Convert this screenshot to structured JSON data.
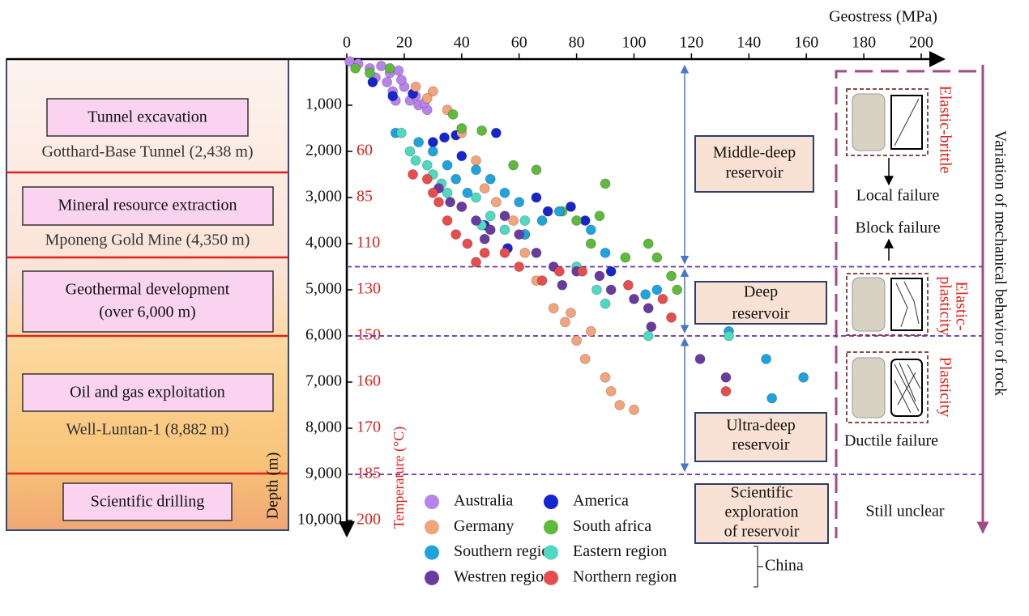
{
  "chart_data": {
    "type": "scatter",
    "x_label": "Geostress (MPa)",
    "y_label": "Depth (m)",
    "xlim": [
      0,
      200
    ],
    "xticks": [
      0,
      20,
      40,
      60,
      80,
      100,
      120,
      140,
      160,
      180,
      200
    ],
    "ylim": [
      0,
      10000
    ],
    "yticks": [
      {
        "value": 1000,
        "label": "1,000"
      },
      {
        "value": 2000,
        "label": "2,000"
      },
      {
        "value": 3000,
        "label": "3,000"
      },
      {
        "value": 4000,
        "label": "4,000"
      },
      {
        "value": 5000,
        "label": "5,000"
      },
      {
        "value": 6000,
        "label": "6,000"
      },
      {
        "value": 7000,
        "label": "7,000"
      },
      {
        "value": 8000,
        "label": "8,000"
      },
      {
        "value": 9000,
        "label": "9,000"
      },
      {
        "value": 10000,
        "label": "10,000"
      }
    ],
    "temperature_axis": {
      "label": "Temperature (°C)",
      "ticks": [
        {
          "depth": 2000,
          "temp": 60
        },
        {
          "depth": 3000,
          "temp": 85
        },
        {
          "depth": 4000,
          "temp": 110
        },
        {
          "depth": 5000,
          "temp": 130
        },
        {
          "depth": 6000,
          "temp": 150
        },
        {
          "depth": 7000,
          "temp": 160
        },
        {
          "depth": 8000,
          "temp": 170
        },
        {
          "depth": 9000,
          "temp": 185
        },
        {
          "depth": 10000,
          "temp": 200
        }
      ]
    },
    "legend_group": "China",
    "series": [
      {
        "name": "Australia",
        "color": "#b784ec",
        "x": [
          1,
          4,
          8,
          12,
          15,
          18,
          14,
          20,
          22,
          25,
          28,
          17,
          10,
          24,
          27,
          19,
          16
        ],
        "y": [
          50,
          100,
          200,
          150,
          300,
          250,
          500,
          600,
          900,
          1000,
          1100,
          900,
          400,
          800,
          950,
          450,
          700
        ]
      },
      {
        "name": "America",
        "color": "#1526cf",
        "x": [
          9,
          16,
          23,
          30,
          34,
          38,
          40,
          52,
          66,
          70,
          78,
          83,
          92,
          62,
          56,
          48
        ],
        "y": [
          500,
          800,
          750,
          1800,
          1700,
          1650,
          2100,
          1600,
          3000,
          3300,
          3200,
          3500,
          4600,
          3800,
          4100,
          3600
        ]
      },
      {
        "name": "Germany",
        "color": "#f2a57c",
        "x": [
          24,
          30,
          35,
          40,
          45,
          48,
          52,
          58,
          62,
          66,
          72,
          76,
          80,
          83,
          90,
          92,
          95,
          100,
          28,
          85,
          78
        ],
        "y": [
          600,
          700,
          1100,
          1600,
          2200,
          2800,
          3100,
          3500,
          4200,
          4800,
          5400,
          5700,
          6100,
          6500,
          6900,
          7200,
          7500,
          7600,
          850,
          5900,
          5500
        ]
      },
      {
        "name": "South africa",
        "color": "#5fba3c",
        "x": [
          3,
          8,
          15,
          37,
          40,
          47,
          58,
          66,
          75,
          80,
          88,
          97,
          105,
          108,
          113,
          115,
          90,
          85
        ],
        "y": [
          200,
          300,
          200,
          1200,
          1500,
          1550,
          2300,
          2400,
          3300,
          3500,
          3400,
          4300,
          4000,
          4300,
          4700,
          5000,
          2700,
          4000
        ]
      },
      {
        "name": "Southern region",
        "color": "#1fa3dc",
        "x": [
          17,
          25,
          30,
          35,
          38,
          45,
          50,
          55,
          60,
          68,
          74,
          85,
          90,
          104,
          108,
          133,
          42,
          62,
          146,
          159,
          148
        ],
        "y": [
          1600,
          1800,
          2000,
          2300,
          2600,
          2400,
          2600,
          2900,
          3100,
          3500,
          3300,
          3700,
          4200,
          5100,
          5000,
          5900,
          2900,
          3800,
          6500,
          6900,
          7350
        ]
      },
      {
        "name": "Eastern region",
        "color": "#4fd9c1",
        "x": [
          19,
          22,
          24,
          30,
          33,
          35,
          40,
          45,
          50,
          55,
          62,
          80,
          87,
          90,
          105,
          133,
          28,
          47
        ],
        "y": [
          1600,
          2000,
          2200,
          2500,
          2700,
          2900,
          3200,
          3000,
          3400,
          3700,
          3500,
          4500,
          5000,
          5300,
          6000,
          6000,
          2300,
          3600
        ]
      },
      {
        "name": "Westren region",
        "color": "#6a3b9f",
        "x": [
          32,
          36,
          40,
          45,
          50,
          55,
          60,
          66,
          72,
          75,
          80,
          88,
          92,
          100,
          105,
          106,
          123,
          132,
          48
        ],
        "y": [
          2800,
          3100,
          3200,
          3500,
          3700,
          3400,
          3800,
          4200,
          4500,
          4900,
          4600,
          4700,
          5000,
          5200,
          5400,
          5800,
          6500,
          6900,
          3900
        ]
      },
      {
        "name": "Northern region",
        "color": "#e84d4d",
        "x": [
          23,
          28,
          30,
          32,
          35,
          38,
          42,
          48,
          55,
          60,
          68,
          74,
          82,
          98,
          110,
          113,
          132,
          45
        ],
        "y": [
          2500,
          2600,
          2900,
          3100,
          3500,
          3800,
          4000,
          4200,
          4200,
          4500,
          4800,
          4600,
          4600,
          4900,
          5200,
          5600,
          7200,
          4400
        ]
      }
    ],
    "zone_boundaries": [
      4500,
      6000,
      9000
    ]
  },
  "left_panel": [
    {
      "box": [
        "Tunnel excavation"
      ],
      "note": "Gotthard-Base Tunnel (2,438 m)"
    },
    {
      "box": [
        "Mineral resource extraction"
      ],
      "note": "Mponeng Gold Mine (4,350 m)"
    },
    {
      "box": [
        "Geothermal development",
        "(over 6,000 m)"
      ]
    },
    {
      "box": [
        "Oil and gas exploitation"
      ],
      "note": "Well-Luntan-1 (8,882 m)"
    },
    {
      "box": [
        "Scientific drilling"
      ]
    }
  ],
  "reservoirs": [
    [
      "Middle-deep",
      "reservoir"
    ],
    [
      "Deep",
      "reservoir"
    ],
    [
      "Ultra-deep",
      "reservoir"
    ],
    [
      "Scientific",
      "exploration",
      "of reservoir"
    ]
  ],
  "behavior": {
    "title": "Variation of mechanical behavior of rock",
    "stages": [
      [
        "Elastic-brittle"
      ],
      [
        "Elastic-",
        "plasticity"
      ],
      [
        "Plasticity"
      ]
    ],
    "failures": [
      "Local failure",
      "Block failure",
      "Ductile failure",
      "Still unclear"
    ]
  }
}
